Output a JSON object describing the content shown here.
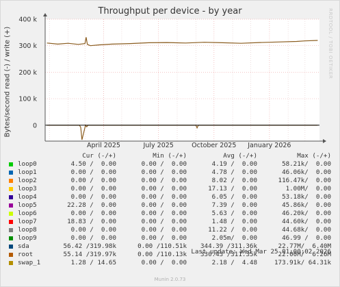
{
  "title": "Throughput per device - by year",
  "side_label": "RRDTOOL / TOBI OETIKER",
  "chart_data": {
    "type": "line",
    "title": "Throughput per device - by year",
    "ylabel": "Bytes/second read (-) / write (+)",
    "xlabel": "",
    "ylim": [
      -60000,
      400000
    ],
    "y_ticks": [
      {
        "value": 400000,
        "label": "400 k"
      },
      {
        "value": 300000,
        "label": "300 k"
      },
      {
        "value": 200000,
        "label": "200 k"
      },
      {
        "value": 100000,
        "label": "100 k"
      },
      {
        "value": 0,
        "label": "0"
      }
    ],
    "xlim": [
      "2024-12-25",
      "2026-03-25"
    ],
    "x_ticks": [
      {
        "date": "2025-04-01",
        "label": "April 2025"
      },
      {
        "date": "2025-07-01",
        "label": "July 2025"
      },
      {
        "date": "2025-10-01",
        "label": "October 2025"
      },
      {
        "date": "2026-01-01",
        "label": "January 2026"
      }
    ],
    "grid": true,
    "series": [
      {
        "name": "sda",
        "color": "#8a5c1e",
        "direction": "write",
        "x": [
          "2024-12-28",
          "2025-01-15",
          "2025-02-01",
          "2025-02-18",
          "2025-03-01",
          "2025-03-03",
          "2025-03-05",
          "2025-03-10",
          "2025-03-25",
          "2025-04-15",
          "2025-05-15",
          "2025-06-15",
          "2025-07-15",
          "2025-08-15",
          "2025-09-15",
          "2025-10-15",
          "2025-11-15",
          "2025-12-15",
          "2026-01-15",
          "2026-02-15",
          "2026-03-01",
          "2026-03-22"
        ],
        "values": [
          310000,
          306000,
          309000,
          305000,
          308000,
          332000,
          305000,
          300000,
          303000,
          306000,
          308000,
          311000,
          312000,
          310000,
          313000,
          311000,
          309000,
          312000,
          314000,
          316000,
          318000,
          320000
        ]
      },
      {
        "name": "sda",
        "color": "#8a5c1e",
        "direction": "read",
        "x": [
          "2024-12-28",
          "2025-02-20",
          "2025-02-22",
          "2025-02-24",
          "2025-03-02",
          "2025-03-04",
          "2025-03-06",
          "2025-09-01",
          "2025-09-03",
          "2025-09-05",
          "2026-03-22"
        ],
        "values": [
          0,
          0,
          -8000,
          -55000,
          0,
          -6000,
          0,
          0,
          -10000,
          0,
          0
        ]
      }
    ]
  },
  "legend": {
    "headers": {
      "cur": "Cur (-/+)",
      "min": "Min (-/+)",
      "avg": "Avg (-/+)",
      "max": "Max (-/+)"
    },
    "rows": [
      {
        "name": "loop0",
        "color": "#00cc00",
        "cur": "4.50 /  0.00",
        "min": "0.00 /  0.00",
        "avg": "4.19 /  0.00",
        "max": "58.21k/  0.00"
      },
      {
        "name": "loop1",
        "color": "#0066b3",
        "cur": "0.00 /  0.00",
        "min": "0.00 /  0.00",
        "avg": "4.78 /  0.00",
        "max": "46.06k/  0.00"
      },
      {
        "name": "loop2",
        "color": "#ff8000",
        "cur": "0.00 /  0.00",
        "min": "0.00 /  0.00",
        "avg": "8.02 /  0.00",
        "max": "116.47k/  0.00"
      },
      {
        "name": "loop3",
        "color": "#ffcc00",
        "cur": "0.00 /  0.00",
        "min": "0.00 /  0.00",
        "avg": "17.13 /  0.00",
        "max": "1.00M/  0.00"
      },
      {
        "name": "loop4",
        "color": "#330099",
        "cur": "0.00 /  0.00",
        "min": "0.00 /  0.00",
        "avg": "6.05 /  0.00",
        "max": "53.18k/  0.00"
      },
      {
        "name": "loop5",
        "color": "#990099",
        "cur": "22.28 /  0.00",
        "min": "0.00 /  0.00",
        "avg": "7.39 /  0.00",
        "max": "45.86k/  0.00"
      },
      {
        "name": "loop6",
        "color": "#ccff00",
        "cur": "0.00 /  0.00",
        "min": "0.00 /  0.00",
        "avg": "5.63 /  0.00",
        "max": "46.20k/  0.00"
      },
      {
        "name": "loop7",
        "color": "#ff0000",
        "cur": "18.83 /  0.00",
        "min": "0.00 /  0.00",
        "avg": "1.48 /  0.00",
        "max": "44.60k/  0.00"
      },
      {
        "name": "loop8",
        "color": "#808080",
        "cur": "0.00 /  0.00",
        "min": "0.00 /  0.00",
        "avg": "11.22 /  0.00",
        "max": "44.68k/  0.00"
      },
      {
        "name": "loop9",
        "color": "#008f00",
        "cur": "0.00 /  0.00",
        "min": "0.00 /  0.00",
        "avg": "2.05m/  0.00",
        "max": "46.99 /  0.00"
      },
      {
        "name": "sda",
        "color": "#00487d",
        "cur": "56.42 /319.98k",
        "min": "0.00 /110.51k",
        "avg": "344.39 /311.36k",
        "max": "22.77M/  6.40M"
      },
      {
        "name": "root",
        "color": "#b35a00",
        "cur": "55.14 /319.97k",
        "min": "0.00 /110.13k",
        "avg": "330.43 /311.35k",
        "max": "22.00M/  6.26M"
      },
      {
        "name": "swap_1",
        "color": "#b38f00",
        "cur": "1.28 / 14.65",
        "min": "0.00 /  0.00",
        "avg": "2.18 /  4.48",
        "max": "173.91k/ 64.31k"
      }
    ]
  },
  "last_update": "Last update: Wed Mar 25 01:00:02 2026",
  "version": "Munin 2.0.73"
}
